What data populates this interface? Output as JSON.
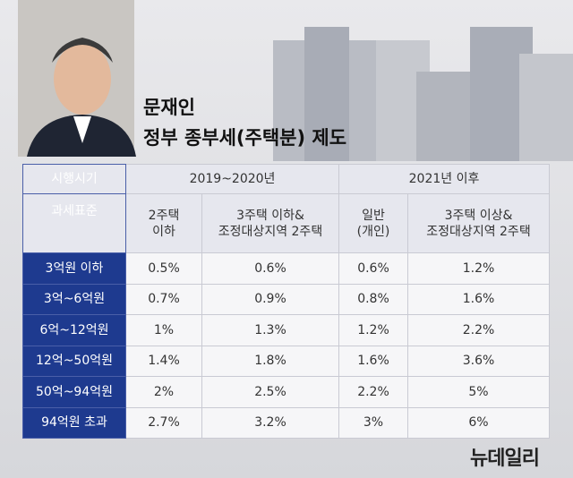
{
  "header": {
    "title_lines": [
      "문재인",
      "정부 종부세(주택분) 제도"
    ]
  },
  "table": {
    "period_header": {
      "label": "시행시기",
      "groups": [
        "2019~2020년",
        "2021년 이후"
      ]
    },
    "column_header": {
      "label": "과세표준",
      "columns": [
        [
          "2주택",
          "이하"
        ],
        [
          "3주택 이하&",
          "조정대상지역 2주택"
        ],
        [
          "일반",
          "(개인)"
        ],
        [
          "3주택 이상&",
          "조정대상지역 2주택"
        ]
      ]
    },
    "rows": [
      [
        "3억원 이하",
        "0.5%",
        "0.6%",
        "0.6%",
        "1.2%"
      ],
      [
        "3억~6억원",
        "0.7%",
        "0.9%",
        "0.8%",
        "1.6%"
      ],
      [
        "6억~12억원",
        "1%",
        "1.3%",
        "1.2%",
        "2.2%"
      ],
      [
        "12억~50억원",
        "1.4%",
        "1.8%",
        "1.6%",
        "3.6%"
      ],
      [
        "50억~94억원",
        "2%",
        "2.5%",
        "2.2%",
        "5%"
      ],
      [
        "94억원 초과",
        "2.7%",
        "3.2%",
        "3%",
        "6%"
      ]
    ]
  },
  "footer": {
    "logo": "뉴데일리"
  }
}
